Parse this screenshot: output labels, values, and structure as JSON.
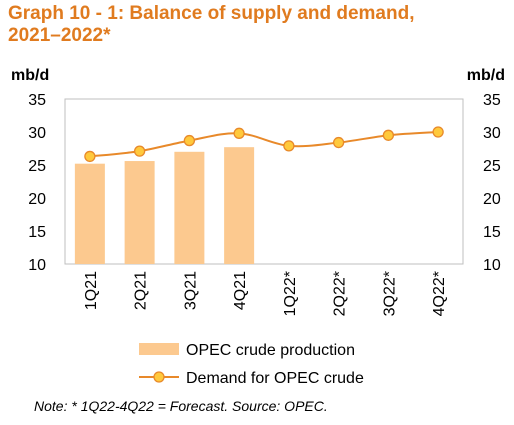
{
  "title_line1": "Graph 10 - 1: Balance of supply and demand,",
  "title_line2": "2021–2022*",
  "note": "Note: * 1Q22-4Q22 = Forecast. Source: OPEC.",
  "colors": {
    "title": "#e07b1f",
    "bar": "#fcc98f",
    "line": "#e8892a",
    "marker_fill": "#ffc93c"
  },
  "chart_data": {
    "type": "bar",
    "categories": [
      "1Q21",
      "2Q21",
      "3Q21",
      "4Q21",
      "1Q22*",
      "2Q22*",
      "3Q22*",
      "4Q22*"
    ],
    "series": [
      {
        "name": "OPEC crude production",
        "type": "bar",
        "values": [
          25.2,
          25.6,
          27.0,
          27.7,
          null,
          null,
          null,
          null
        ]
      },
      {
        "name": "Demand for OPEC crude",
        "type": "line",
        "values": [
          26.3,
          27.1,
          28.7,
          29.8,
          27.9,
          28.4,
          29.5,
          30.0
        ]
      }
    ],
    "ylabel_left": "mb/d",
    "ylabel_right": "mb/d",
    "ylim": [
      10,
      35
    ],
    "yticks": [
      10,
      15,
      20,
      25,
      30,
      35
    ],
    "grid": false,
    "legend_position": "bottom"
  }
}
